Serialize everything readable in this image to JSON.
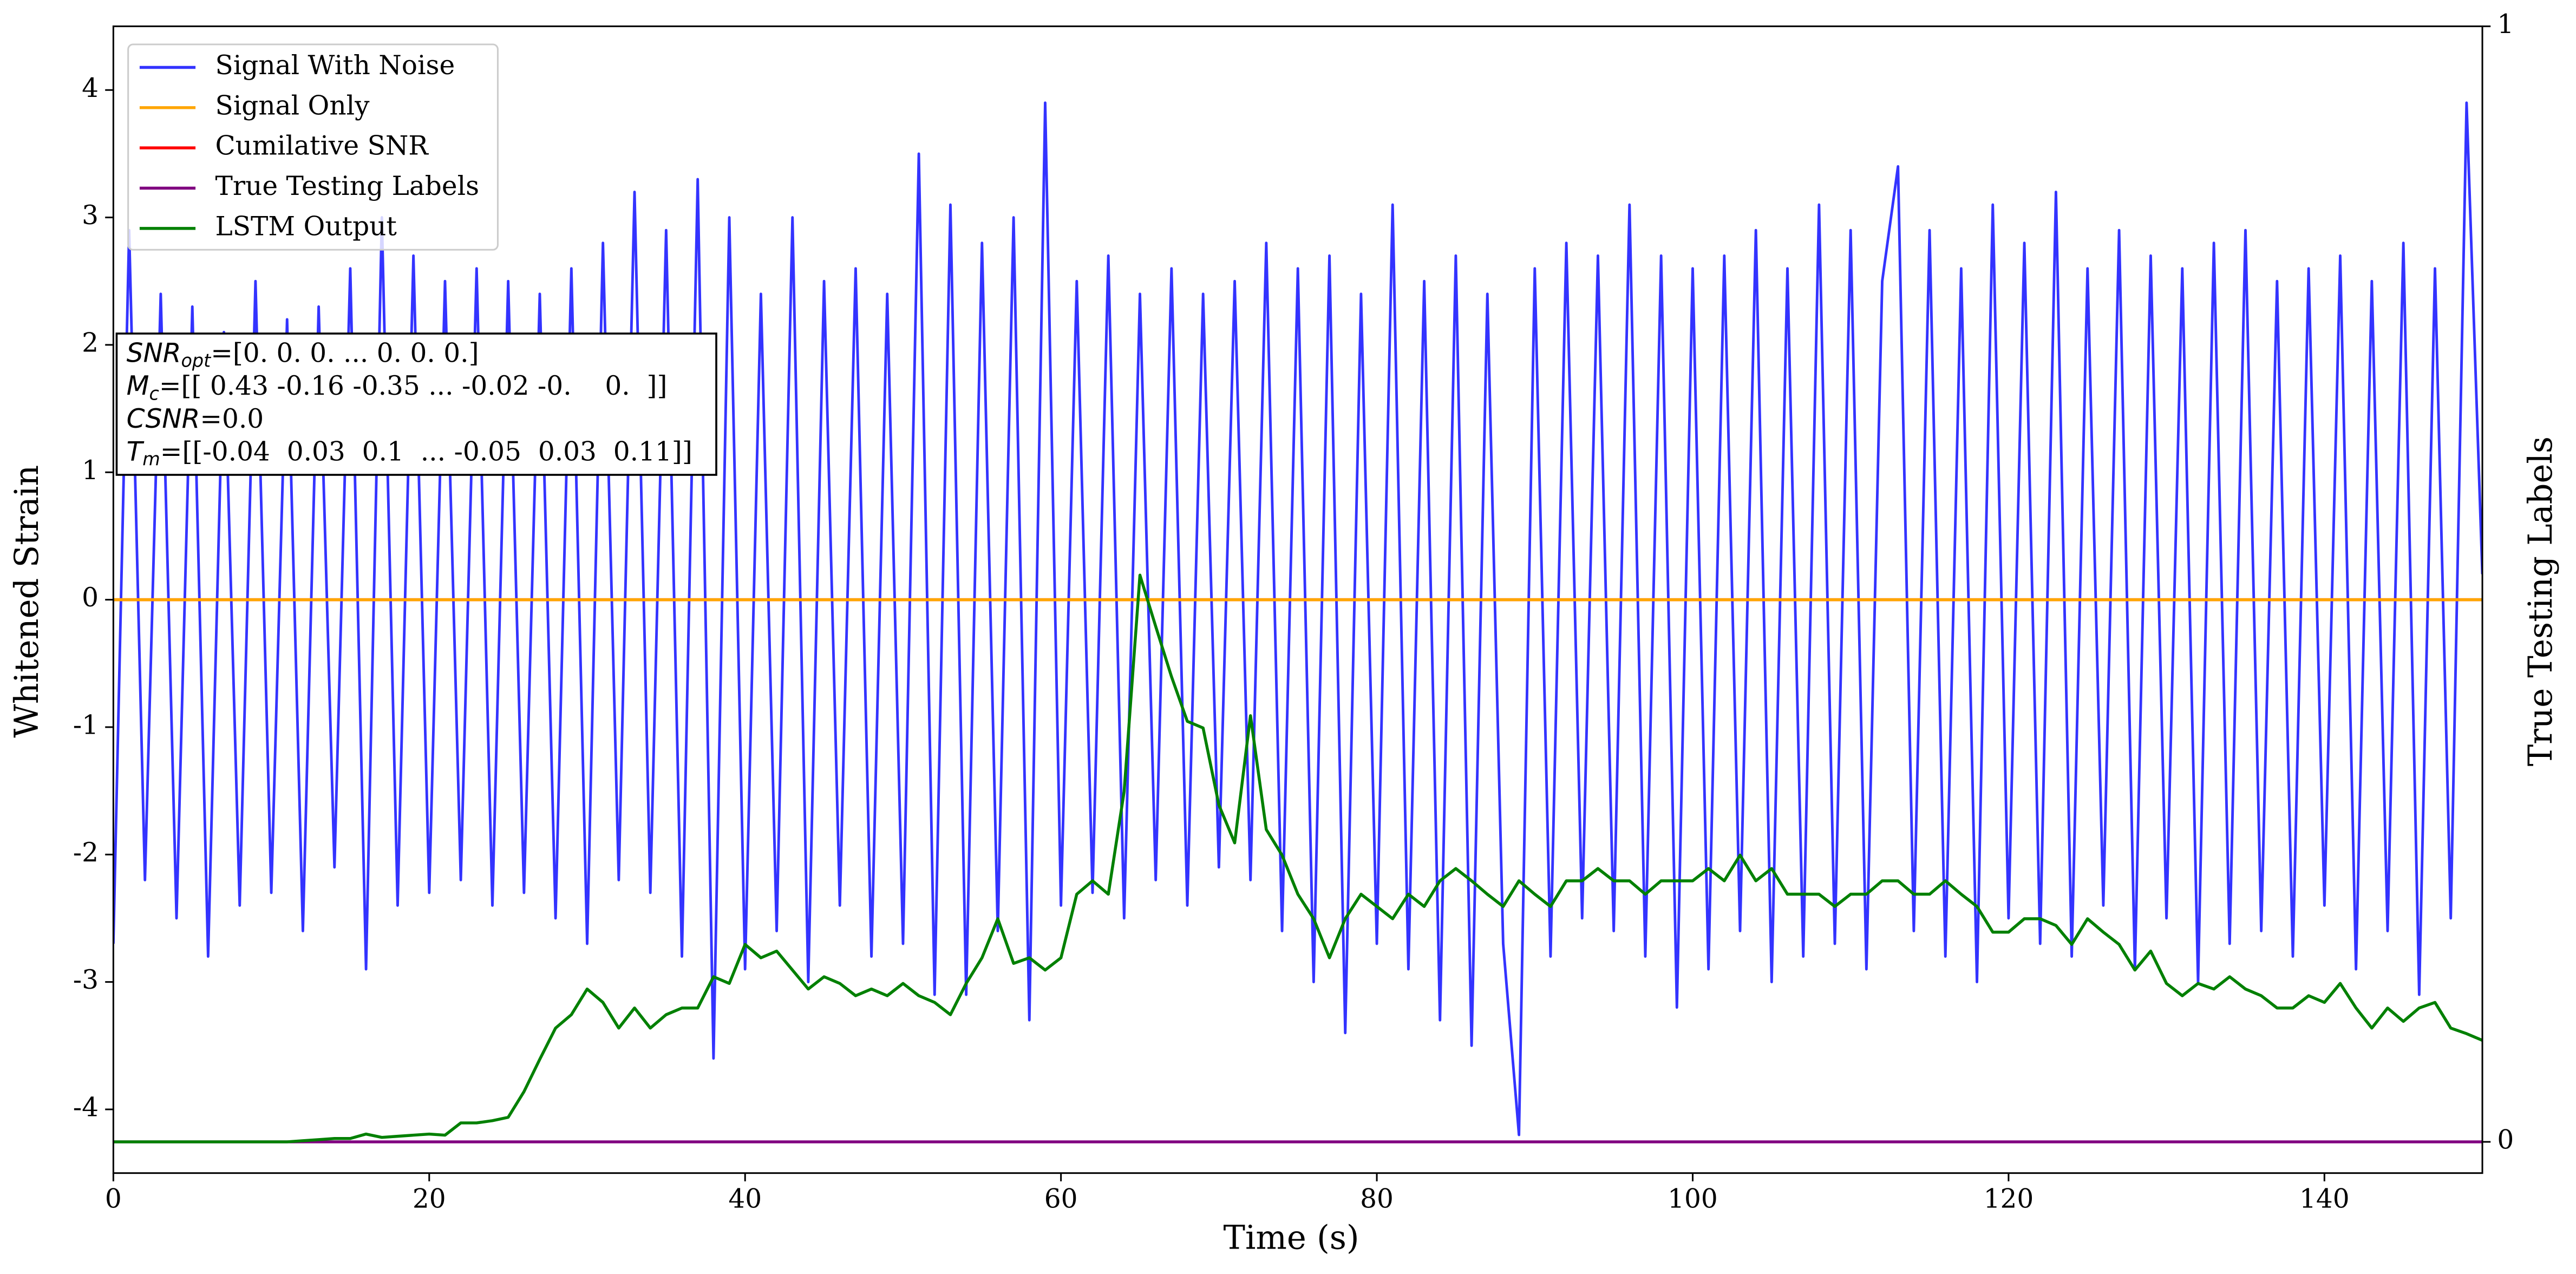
{
  "chart_data": {
    "type": "line",
    "xlabel": "Time (s)",
    "ylabel": "Whitened Strain",
    "y2label": "True Testing Labels",
    "xlim": [
      0,
      150
    ],
    "ylim": [
      -4.5,
      4.5
    ],
    "y2lim": [
      -0.028,
      1.0
    ],
    "xticks": [
      0,
      20,
      40,
      60,
      80,
      100,
      120,
      140
    ],
    "yticks": [
      -4,
      -3,
      -2,
      -1,
      0,
      1,
      2,
      3,
      4
    ],
    "y2ticks": [
      0,
      1
    ],
    "legend": "upper left",
    "x": [
      0,
      1,
      2,
      3,
      4,
      5,
      6,
      7,
      8,
      9,
      10,
      11,
      12,
      13,
      14,
      15,
      16,
      17,
      18,
      19,
      20,
      21,
      22,
      23,
      24,
      25,
      26,
      27,
      28,
      29,
      30,
      31,
      32,
      33,
      34,
      35,
      36,
      37,
      38,
      39,
      40,
      41,
      42,
      43,
      44,
      45,
      46,
      47,
      48,
      49,
      50,
      51,
      52,
      53,
      54,
      55,
      56,
      57,
      58,
      59,
      60,
      61,
      62,
      63,
      64,
      65,
      66,
      67,
      68,
      69,
      70,
      71,
      72,
      73,
      74,
      75,
      76,
      77,
      78,
      79,
      80,
      81,
      82,
      83,
      84,
      85,
      86,
      87,
      88,
      89,
      90,
      91,
      92,
      93,
      94,
      95,
      96,
      97,
      98,
      99,
      100,
      101,
      102,
      103,
      104,
      105,
      106,
      107,
      108,
      109,
      110,
      111,
      112,
      113,
      114,
      115,
      116,
      117,
      118,
      119,
      120,
      121,
      122,
      123,
      124,
      125,
      126,
      127,
      128,
      129,
      130,
      131,
      132,
      133,
      134,
      135,
      136,
      137,
      138,
      139,
      140,
      141,
      142,
      143,
      144,
      145,
      146,
      147,
      148,
      149,
      150
    ],
    "series": [
      {
        "name": "Signal With Noise",
        "color": "#3333ff",
        "values": [
          -2.7,
          2.9,
          -2.2,
          2.4,
          -2.5,
          2.3,
          -2.8,
          2.1,
          -2.4,
          2.5,
          -2.3,
          2.2,
          -2.6,
          2.3,
          -2.1,
          2.6,
          -2.9,
          3.0,
          -2.4,
          2.7,
          -2.3,
          2.5,
          -2.2,
          2.6,
          -2.4,
          2.5,
          -2.3,
          2.4,
          -2.5,
          2.6,
          -2.7,
          2.8,
          -2.2,
          3.2,
          -2.3,
          2.9,
          -2.8,
          3.3,
          -3.6,
          3.0,
          -2.9,
          2.4,
          -2.6,
          3.0,
          -3.0,
          2.5,
          -2.4,
          2.6,
          -2.8,
          2.4,
          -2.7,
          3.5,
          -3.1,
          3.1,
          -3.1,
          2.8,
          -2.6,
          3.0,
          -3.3,
          3.9,
          -2.4,
          2.5,
          -2.3,
          2.7,
          -2.5,
          2.4,
          -2.2,
          2.6,
          -2.4,
          2.4,
          -2.1,
          2.5,
          -2.2,
          2.8,
          -2.6,
          2.6,
          -3.0,
          2.7,
          -3.4,
          2.4,
          -2.7,
          3.1,
          -2.9,
          2.5,
          -3.3,
          2.7,
          -3.5,
          2.4,
          -2.7,
          -4.2,
          2.6,
          -2.8,
          2.8,
          -2.5,
          2.7,
          -2.6,
          3.1,
          -2.8,
          2.7,
          -3.2,
          2.6,
          -2.9,
          2.7,
          -2.6,
          2.9,
          -3.0,
          2.6,
          -2.8,
          3.1,
          -2.7,
          2.9,
          -2.9,
          2.5,
          3.4,
          -2.6,
          2.9,
          -2.8,
          2.6,
          -3.0,
          3.1,
          -2.5,
          2.8,
          -2.7,
          3.2,
          -2.8,
          2.6,
          -2.4,
          2.9,
          -2.9,
          2.7,
          -2.5,
          2.6,
          -3.0,
          2.8,
          -2.7,
          2.9,
          -2.6,
          2.5,
          -2.8,
          2.6,
          -2.4,
          2.7,
          -2.9,
          2.5,
          -2.6,
          2.8,
          -3.1,
          2.6,
          -2.5,
          3.9,
          0.2
        ]
      },
      {
        "name": "Signal Only",
        "color": "#ffa500",
        "x": [
          0,
          150
        ],
        "values": [
          0,
          0
        ]
      },
      {
        "name": "Cumilative SNR",
        "color": "#ff0000",
        "x": [
          0,
          150
        ],
        "values": [
          0,
          0
        ]
      },
      {
        "name": "True Testing Labels",
        "color": "#800080",
        "axis": "y2",
        "x": [
          0,
          150
        ],
        "values": [
          0,
          0
        ]
      },
      {
        "name": "LSTM Output",
        "color": "#008000",
        "axis": "y2",
        "values": [
          0,
          0,
          0,
          0,
          0,
          0,
          0,
          0,
          0,
          0,
          0,
          0,
          0.001,
          0.002,
          0.003,
          0.003,
          0.007,
          0.004,
          0.005,
          0.006,
          0.007,
          0.006,
          0.017,
          0.017,
          0.019,
          0.022,
          0.045,
          0.074,
          0.102,
          0.114,
          0.137,
          0.125,
          0.102,
          0.12,
          0.102,
          0.114,
          0.12,
          0.12,
          0.148,
          0.142,
          0.177,
          0.165,
          0.171,
          0.154,
          0.137,
          0.148,
          0.142,
          0.131,
          0.137,
          0.131,
          0.142,
          0.131,
          0.125,
          0.114,
          0.142,
          0.165,
          0.2,
          0.16,
          0.165,
          0.154,
          0.165,
          0.222,
          0.234,
          0.222,
          0.314,
          0.508,
          0.462,
          0.417,
          0.377,
          0.371,
          0.302,
          0.268,
          0.382,
          0.28,
          0.257,
          0.222,
          0.2,
          0.165,
          0.2,
          0.222,
          0.211,
          0.2,
          0.222,
          0.211,
          0.234,
          0.245,
          0.234,
          0.222,
          0.211,
          0.234,
          0.222,
          0.211,
          0.234,
          0.234,
          0.245,
          0.234,
          0.234,
          0.222,
          0.234,
          0.234,
          0.234,
          0.245,
          0.234,
          0.257,
          0.234,
          0.245,
          0.222,
          0.222,
          0.222,
          0.211,
          0.222,
          0.222,
          0.234,
          0.234,
          0.222,
          0.222,
          0.234,
          0.222,
          0.211,
          0.188,
          0.188,
          0.2,
          0.2,
          0.194,
          0.177,
          0.2,
          0.188,
          0.177,
          0.154,
          0.171,
          0.142,
          0.131,
          0.142,
          0.137,
          0.148,
          0.137,
          0.131,
          0.12,
          0.12,
          0.131,
          0.125,
          0.142,
          0.12,
          0.102,
          0.12,
          0.108,
          0.12,
          0.125,
          0.102,
          0.097,
          0.091
        ]
      }
    ],
    "annotations": [
      {
        "symbol": "SNR",
        "subscript": "opt",
        "text": "=[0. 0. 0. ... 0. 0. 0.]"
      },
      {
        "symbol": "M",
        "subscript": "c",
        "text": "=[[ 0.43 -0.16 -0.35 ... -0.02 -0.    0.  ]]"
      },
      {
        "symbol": "CSNR",
        "text": "=0.0"
      },
      {
        "symbol": "T",
        "subscript": "m",
        "text": "=[[-0.04  0.03  0.1  ... -0.05  0.03  0.11]]"
      }
    ]
  }
}
